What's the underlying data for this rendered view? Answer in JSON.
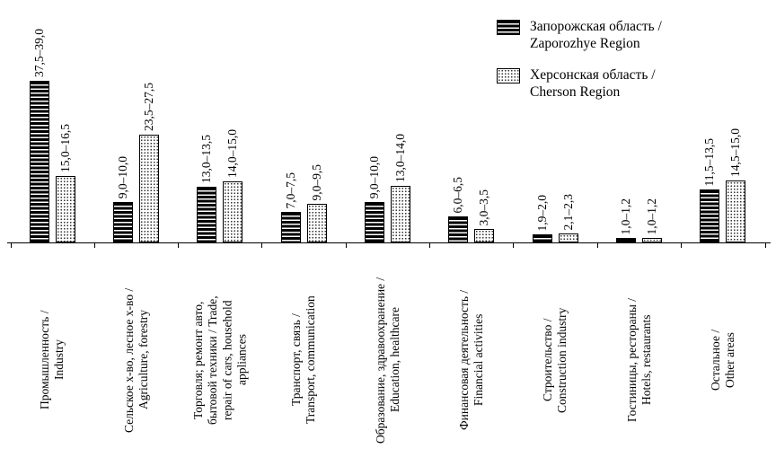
{
  "legend": {
    "items": [
      {
        "line1": "Запорожская область /",
        "line2": "Zaporozhye Region"
      },
      {
        "line1": "Херсонская область /",
        "line2": "Cherson Region"
      }
    ]
  },
  "chart_data": {
    "type": "bar",
    "title": "",
    "xlabel": "",
    "ylabel": "",
    "ylim": [
      0,
      40
    ],
    "grid": false,
    "legend_position": "top-right",
    "value_labels_rotated": true,
    "categories": [
      {
        "lines": [
          "Промышленность /",
          "Industry"
        ]
      },
      {
        "lines": [
          "Сельское х-во, лесное х-во /",
          "Agriculture, forestry"
        ]
      },
      {
        "lines": [
          "Торговля; ремонт авто,",
          "бытовой техники / Trade,",
          "repair of cars, household",
          "appliances"
        ]
      },
      {
        "lines": [
          "Транспорт, связь /",
          "Transport, communication"
        ]
      },
      {
        "lines": [
          "Образование, здравоохранение /",
          "Education, healthcare"
        ]
      },
      {
        "lines": [
          "Финансовая деятельность /",
          "Financial activities"
        ]
      },
      {
        "lines": [
          "Строительство /",
          "Construction industry"
        ]
      },
      {
        "lines": [
          "Гостиницы, рестораны /",
          "Hotels, restaurants"
        ]
      },
      {
        "lines": [
          "Остальное /",
          "Other areas"
        ]
      }
    ],
    "series": [
      {
        "name": "Запорожская область / Zaporozhye Region",
        "pattern": "horizontal-stripes",
        "labels": [
          "37,5–39,0",
          "9,0–10,0",
          "13,0–13,5",
          "7,0–7,5",
          "9,0–10,0",
          "6,0–6,5",
          "1,9–2,0",
          "1,0–1,2",
          "11,5–13,5"
        ],
        "values": [
          38.25,
          9.5,
          13.25,
          7.25,
          9.5,
          6.25,
          1.95,
          1.1,
          12.5
        ]
      },
      {
        "name": "Херсонская область / Cherson Region",
        "pattern": "dots",
        "labels": [
          "15,0–16,5",
          "23,5–27,5",
          "14,0–15,0",
          "9,0–9,5",
          "13,0–14,0",
          "3,0–3,5",
          "2,1–2,3",
          "1,0–1,2",
          "14,5–15,0"
        ],
        "values": [
          15.75,
          25.5,
          14.5,
          9.25,
          13.5,
          3.25,
          2.2,
          1.1,
          14.75
        ]
      }
    ],
    "colors": {
      "bar_outline": "#000000",
      "background": "#ffffff"
    }
  }
}
